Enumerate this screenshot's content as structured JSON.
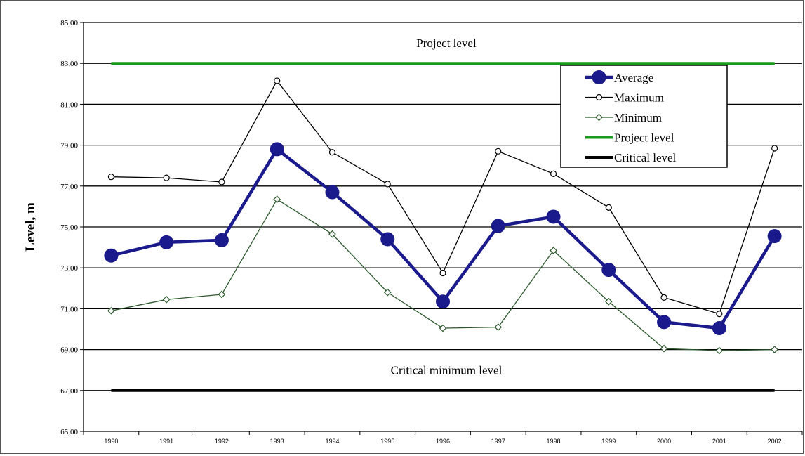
{
  "chart_data": {
    "type": "line",
    "ylabel": "Level, m",
    "xlabel": "",
    "categories": [
      "1990",
      "1991",
      "1992",
      "1993",
      "1994",
      "1995",
      "1996",
      "1997",
      "1998",
      "1999",
      "2000",
      "2001",
      "2002"
    ],
    "ylim": [
      65,
      85
    ],
    "yticks": [
      "65,00",
      "67,00",
      "69,00",
      "71,00",
      "73,00",
      "75,00",
      "77,00",
      "79,00",
      "81,00",
      "83,00",
      "85,00"
    ],
    "grid": true,
    "legend_position": "top-right",
    "series": [
      {
        "name": "Average",
        "color": "#1a1a8c",
        "marker": "filled-circle",
        "values": [
          73.6,
          74.25,
          74.35,
          78.8,
          76.7,
          74.4,
          71.35,
          75.05,
          75.5,
          72.9,
          70.35,
          70.05,
          74.55
        ]
      },
      {
        "name": "Maximum",
        "color": "#000000",
        "marker": "open-circle",
        "values": [
          77.45,
          77.4,
          77.2,
          82.15,
          78.65,
          77.1,
          72.75,
          78.7,
          77.6,
          75.95,
          71.55,
          70.75,
          78.85
        ]
      },
      {
        "name": "Minimum",
        "color": "#2d5a2d",
        "marker": "open-diamond",
        "values": [
          70.9,
          71.45,
          71.7,
          76.35,
          74.65,
          71.8,
          70.05,
          70.1,
          73.85,
          71.35,
          69.05,
          68.95,
          69.0
        ]
      }
    ],
    "reference_lines": [
      {
        "name": "Project level",
        "value": 83,
        "color": "#1a9a1a"
      },
      {
        "name": "Critical level",
        "value": 67,
        "color": "#000000"
      }
    ],
    "annotations": [
      {
        "text": "Project level",
        "y": 84.0
      },
      {
        "text": "Critical minimum level",
        "y": 68.0
      }
    ]
  }
}
